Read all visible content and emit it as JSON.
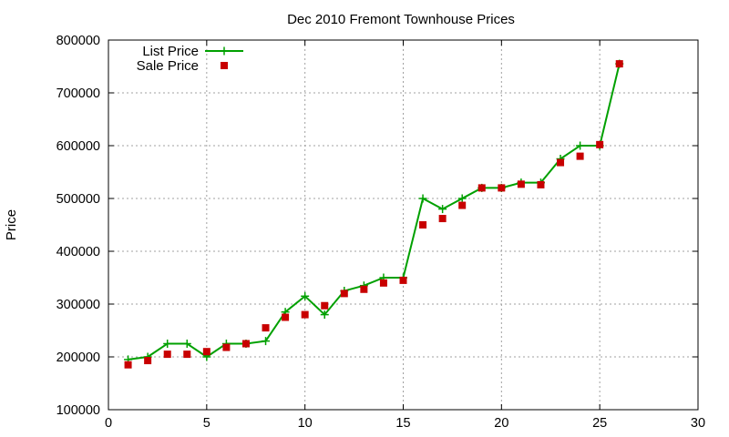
{
  "chart_data": {
    "type": "line",
    "title": "Dec 2010 Fremont Townhouse Prices",
    "xlabel": "",
    "ylabel": "Price",
    "xlim": [
      0,
      30
    ],
    "ylim": [
      100000,
      800000
    ],
    "xticks": [
      0,
      5,
      10,
      15,
      20,
      25,
      30
    ],
    "yticks": [
      100000,
      200000,
      300000,
      400000,
      500000,
      600000,
      700000,
      800000
    ],
    "grid": true,
    "legend_position": "top-left",
    "series": [
      {
        "name": "List Price",
        "style": "line-with-plus-markers",
        "color": "#00a000",
        "x": [
          1,
          2,
          3,
          4,
          5,
          6,
          7,
          8,
          9,
          10,
          11,
          12,
          13,
          14,
          15,
          16,
          17,
          18,
          19,
          20,
          21,
          22,
          23,
          24,
          25,
          26
        ],
        "y": [
          195000,
          200000,
          225000,
          225000,
          200000,
          225000,
          225000,
          230000,
          285000,
          315000,
          280000,
          325000,
          335000,
          350000,
          350000,
          500000,
          480000,
          500000,
          520000,
          520000,
          530000,
          530000,
          575000,
          600000,
          600000,
          755000
        ]
      },
      {
        "name": "Sale Price",
        "style": "square-markers",
        "color": "#c80000",
        "x": [
          1,
          2,
          3,
          4,
          5,
          6,
          7,
          8,
          9,
          10,
          11,
          12,
          13,
          14,
          15,
          16,
          17,
          18,
          19,
          20,
          21,
          22,
          23,
          24,
          25,
          26
        ],
        "y": [
          185000,
          193000,
          205000,
          205000,
          210000,
          218000,
          225000,
          255000,
          275000,
          280000,
          297000,
          320000,
          328000,
          340000,
          345000,
          450000,
          462000,
          487000,
          520000,
          520000,
          527000,
          526000,
          568000,
          580000,
          602000,
          755000
        ]
      }
    ]
  }
}
